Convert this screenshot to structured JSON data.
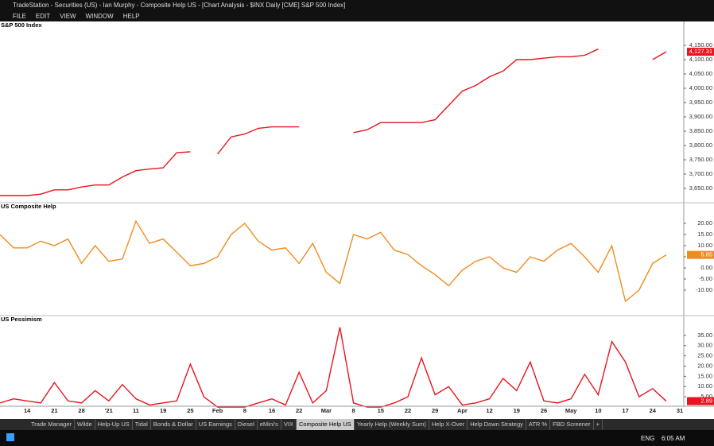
{
  "window": {
    "title": "TradeStation - Securities (US) - Ian Murphy - Composite Help US - [Chart Analysis - $INX Daily [CME] S&P 500 Index]",
    "menu": [
      "FILE",
      "EDIT",
      "VIEW",
      "WINDOW",
      "HELP"
    ],
    "tabs": [
      "Trade Manager",
      "Wilde",
      "Help-Up US",
      "Tidal",
      "Bonds & Dollar",
      "US Earnings",
      "Diesel",
      "eMini's",
      "VIX",
      "Composite Help US",
      "Yearly Help (Weekly Sum)",
      "Help X-Over",
      "Help Down Strategy",
      "ATR %",
      "FBD Screener",
      "+"
    ],
    "active_tab": "Composite Help US",
    "taskbar": {
      "language": "ENG",
      "time": "6:05 AM"
    }
  },
  "chart_data": [
    {
      "type": "line",
      "title": "S&P 500 Index",
      "color": "#e8141e",
      "values": [
        3625,
        3625,
        3625,
        3630,
        3645,
        3645,
        3655,
        3662,
        3662,
        3690,
        3712,
        3718,
        3722,
        3775,
        3778,
        null,
        3770,
        3830,
        3840,
        3860,
        3865,
        3865,
        3865,
        null,
        null,
        null,
        3845,
        3855,
        3880,
        3880,
        3880,
        3880,
        3890,
        3940,
        3990,
        4010,
        4040,
        4060,
        4100,
        4100,
        4105,
        4110,
        4110,
        4115,
        4137,
        null,
        null,
        null,
        4100,
        4127.31,
        null
      ],
      "value_labels": {
        "49": "4,127.31"
      },
      "ylim": [
        3600,
        4200
      ],
      "yticks": [
        {
          "value": 3650,
          "label": "3,650.00"
        },
        {
          "value": 3700,
          "label": "3,700.00"
        },
        {
          "value": 3750,
          "label": "3,750.00"
        },
        {
          "value": 3800,
          "label": "3,800.00"
        },
        {
          "value": 3850,
          "label": "3,850.00"
        },
        {
          "value": 3900,
          "label": "3,900.00"
        },
        {
          "value": 3950,
          "label": "3,950.00"
        },
        {
          "value": 4000,
          "label": "4,000.00"
        },
        {
          "value": 4050,
          "label": "4,050.00"
        },
        {
          "value": 4100,
          "label": "4,100.00"
        },
        {
          "value": 4150,
          "label": "4,150.00"
        }
      ]
    },
    {
      "type": "line",
      "title": "US Composite Help",
      "color": "#f08c1e",
      "values": [
        15,
        9,
        9,
        12,
        10,
        13,
        2,
        10,
        3,
        4,
        21,
        11,
        13,
        7,
        1,
        2,
        5,
        15,
        20,
        12,
        8,
        9,
        2,
        11,
        -2,
        -7,
        15,
        13,
        16,
        8,
        6,
        1,
        -3,
        -8,
        -1,
        3,
        5,
        0,
        -2,
        5,
        3,
        8,
        11,
        5,
        -2,
        10,
        -15,
        -10,
        2,
        5.85,
        null
      ],
      "value_labels": {
        "49": "5.85"
      },
      "ylim": [
        -15,
        25
      ],
      "yticks": [
        {
          "value": -10,
          "label": "-10.00"
        },
        {
          "value": -5,
          "label": "-5.00"
        },
        {
          "value": 0,
          "label": "0.00"
        },
        {
          "value": 5,
          "label": "5.00"
        },
        {
          "value": 10,
          "label": "10.00"
        },
        {
          "value": 15,
          "label": "15.00"
        },
        {
          "value": 20,
          "label": "20.00"
        }
      ]
    },
    {
      "type": "line",
      "title": "US Pessimism",
      "color": "#e8141e",
      "categories": [
        null,
        null,
        "14",
        null,
        "21",
        null,
        "28",
        null,
        "'21",
        null,
        "11",
        null,
        "19",
        null,
        "25",
        null,
        "Feb",
        null,
        "8",
        null,
        "16",
        null,
        "22",
        null,
        "Mar",
        null,
        "8",
        null,
        "15",
        null,
        "22",
        null,
        "29",
        null,
        "Apr",
        null,
        "12",
        null,
        "19",
        null,
        "26",
        null,
        "May",
        null,
        "10",
        null,
        "17",
        null,
        "24",
        null,
        "31"
      ],
      "values": [
        2,
        4,
        3,
        2,
        12,
        3,
        2,
        8,
        3,
        11,
        4,
        1,
        2,
        3,
        21,
        5,
        0,
        0,
        0,
        2,
        4,
        1,
        17,
        2,
        8,
        39,
        2,
        0,
        0,
        2,
        5,
        24,
        6,
        10,
        1,
        2,
        4,
        14,
        8,
        22,
        3,
        2,
        4,
        16,
        6,
        32,
        22,
        5,
        9,
        2.89,
        null
      ],
      "value_labels": {
        "49": "2.89"
      },
      "ylim": [
        0,
        40
      ],
      "yticks": [
        {
          "value": 5,
          "label": "5.00"
        },
        {
          "value": 10,
          "label": "10.00"
        },
        {
          "value": 15,
          "label": "15.00"
        },
        {
          "value": 20,
          "label": "20.00"
        },
        {
          "value": 25,
          "label": "25.00"
        },
        {
          "value": 30,
          "label": "30.00"
        },
        {
          "value": 35,
          "label": "35.00"
        }
      ]
    }
  ]
}
